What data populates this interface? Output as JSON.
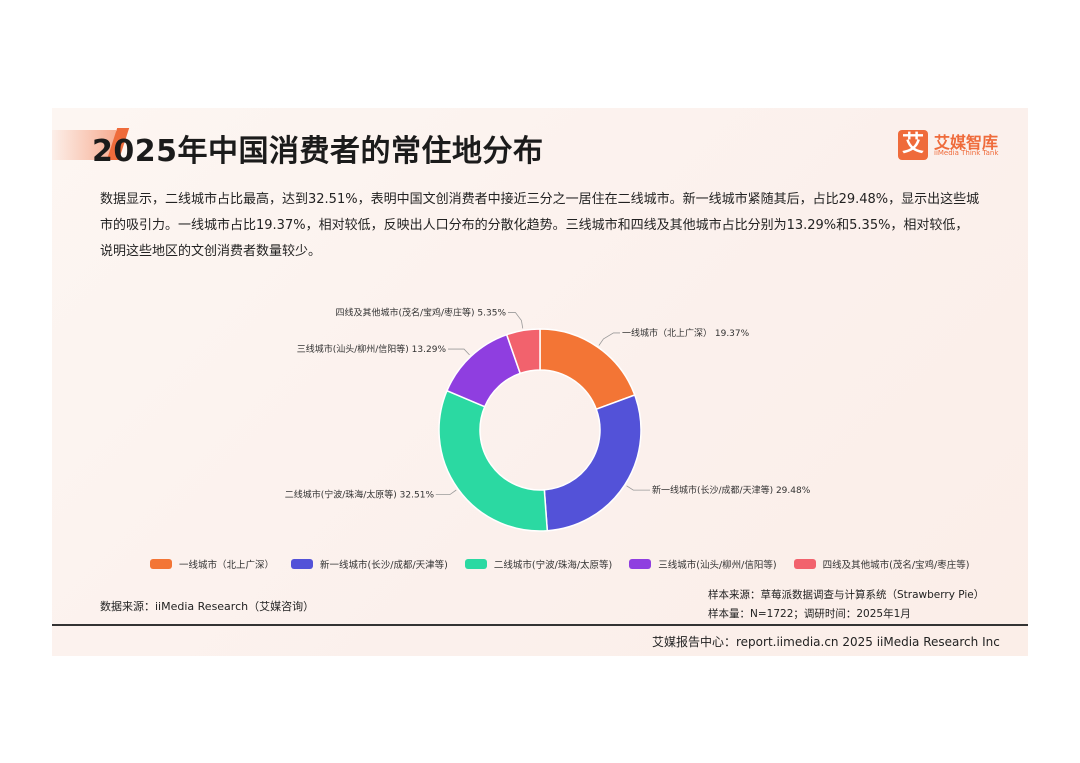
{
  "title": "2025年中国消费者的常住地分布",
  "logo": {
    "mark": "艾",
    "cn": "艾媒智库",
    "en": "iiMedia Think Tank"
  },
  "description": "数据显示，二线城市占比最高，达到32.51%，表明中国文创消费者中接近三分之一居住在二线城市。新一线城市紧随其后，占比29.48%，显示出这些城市的吸引力。一线城市占比19.37%，相对较低，反映出人口分布的分散化趋势。三线城市和四线及其他城市占比分别为13.29%和5.35%，相对较低，说明这些地区的文创消费者数量较少。",
  "chart_data": {
    "type": "pie",
    "donut": true,
    "legend_position": "bottom",
    "categories": [
      "一线城市（北上广深）",
      "新一线城市(长沙/成都/天津等)",
      "二线城市(宁波/珠海/太原等)",
      "三线城市(汕头/柳州/信阳等)",
      "四线及其他城市(茂名/宝鸡/枣庄等)"
    ],
    "values": [
      19.37,
      29.48,
      32.51,
      13.29,
      5.35
    ],
    "colors": [
      "#f37535",
      "#5352d8",
      "#2bd9a2",
      "#8f3ee0",
      "#f2626d"
    ],
    "labels": [
      "一线城市（北上广深） 19.37%",
      "新一线城市(长沙/成都/天津等) 29.48%",
      "二线城市(宁波/珠海/太原等) 32.51%",
      "三线城市(汕头/柳州/信阳等) 13.29%",
      "四线及其他城市(茂名/宝鸡/枣庄等) 5.35%"
    ]
  },
  "source": "数据来源：iiMedia Research（艾媒咨询）",
  "sample_source": "样本来源：草莓派数据调查与计算系统（Strawberry Pie）",
  "sample_info": "样本量：N=1722；调研时间：2025年1月",
  "footer": "艾媒报告中心：report.iimedia.cn 2025 iiMedia Research Inc"
}
